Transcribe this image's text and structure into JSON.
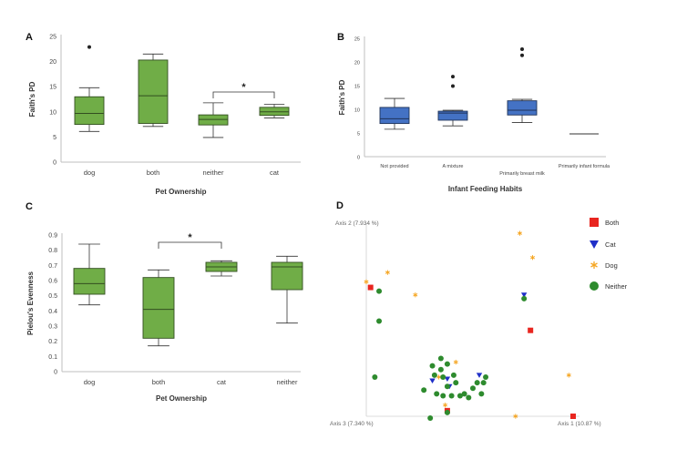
{
  "chart_data": [
    {
      "panel": "A",
      "type": "box",
      "title": "",
      "xlabel": "Pet Ownership",
      "ylabel": "Faith's PD",
      "ylim": [
        0,
        25
      ],
      "yticks": [
        "0",
        "5",
        "10",
        "15",
        "20",
        "25"
      ],
      "categories": [
        "dog",
        "both",
        "neither",
        "cat"
      ],
      "color": "#70ad47",
      "boxes": [
        {
          "min": 6.1,
          "q1": 7.5,
          "median": 9.7,
          "q3": 13.0,
          "max": 14.8,
          "outliers": [
            22.9
          ]
        },
        {
          "min": 7.1,
          "q1": 7.7,
          "median": 13.2,
          "q3": 20.3,
          "max": 21.5,
          "outliers": []
        },
        {
          "min": 4.9,
          "q1": 7.4,
          "median": 8.5,
          "q3": 9.4,
          "max": 11.8,
          "outliers": []
        },
        {
          "min": 8.8,
          "q1": 9.3,
          "median": 10.0,
          "q3": 10.9,
          "max": 11.5,
          "outliers": []
        }
      ],
      "significance": {
        "between": [
          "neither",
          "cat"
        ],
        "label": "*"
      }
    },
    {
      "panel": "B",
      "type": "box",
      "title": "",
      "xlabel": "Infant Feeding Habits",
      "ylabel": "Faith's PD",
      "ylim": [
        0,
        25
      ],
      "yticks": [
        "0",
        "5",
        "10",
        "15",
        "20",
        "25"
      ],
      "categories": [
        "Not provided",
        "A mixture",
        "Primarily breast milk",
        "Primarily infant formula"
      ],
      "color": "#4472c4",
      "boxes": [
        {
          "min": 5.8,
          "q1": 7.0,
          "median": 8.0,
          "q3": 10.4,
          "max": 12.3,
          "outliers": []
        },
        {
          "min": 6.5,
          "q1": 7.7,
          "median": 9.2,
          "q3": 9.6,
          "max": 9.8,
          "outliers": [
            14.9,
            16.9
          ]
        },
        {
          "min": 7.2,
          "q1": 8.8,
          "median": 9.8,
          "q3": 11.8,
          "max": 12.1,
          "outliers": [
            21.4,
            22.7
          ]
        },
        {
          "min": 4.8,
          "q1": 4.8,
          "median": 4.8,
          "q3": 4.8,
          "max": 4.8,
          "outliers": []
        }
      ]
    },
    {
      "panel": "C",
      "type": "box",
      "title": "",
      "xlabel": "Pet Ownership",
      "ylabel": "Pielou's Evenness",
      "ylim": [
        0,
        0.9
      ],
      "yticks": [
        "0",
        "0.1",
        "0.2",
        "0.3",
        "0.4",
        "0.5",
        "0.6",
        "0.7",
        "0.8",
        "0.9"
      ],
      "categories": [
        "dog",
        "both",
        "cat",
        "neither"
      ],
      "color": "#70ad47",
      "boxes": [
        {
          "min": 0.44,
          "q1": 0.51,
          "median": 0.58,
          "q3": 0.68,
          "max": 0.84,
          "outliers": []
        },
        {
          "min": 0.17,
          "q1": 0.22,
          "median": 0.41,
          "q3": 0.62,
          "max": 0.67,
          "outliers": []
        },
        {
          "min": 0.63,
          "q1": 0.66,
          "median": 0.69,
          "q3": 0.72,
          "max": 0.73,
          "outliers": []
        },
        {
          "min": 0.32,
          "q1": 0.54,
          "median": 0.69,
          "q3": 0.72,
          "max": 0.76,
          "outliers": []
        }
      ],
      "significance": {
        "between": [
          "both",
          "cat"
        ],
        "label": "*"
      }
    },
    {
      "panel": "D",
      "type": "scatter",
      "title": "",
      "axes": {
        "axis1": "Axis 1 (10.87 %)",
        "axis2": "Axis 2 (7.934 %)",
        "axis3": "Axis 3 (7.340 %)"
      },
      "legend_position": "top-right",
      "series": [
        {
          "name": "Both",
          "marker": "square",
          "color": "#e8251f",
          "points": [
            [
              0.02,
              0.69
            ],
            [
              0.38,
              0.03
            ],
            [
              0.77,
              0.46
            ],
            [
              0.97,
              0.0
            ]
          ]
        },
        {
          "name": "Cat",
          "marker": "triangle-down",
          "color": "#1f2fc8",
          "points": [
            [
              0.31,
              0.19
            ],
            [
              0.38,
              0.2
            ],
            [
              0.39,
              0.16
            ],
            [
              0.53,
              0.22
            ],
            [
              0.74,
              0.65
            ]
          ]
        },
        {
          "name": "Dog",
          "marker": "asterisk",
          "color": "#f5a623",
          "points": [
            [
              0.0,
              0.72
            ],
            [
              0.1,
              0.77
            ],
            [
              0.23,
              0.65
            ],
            [
              0.34,
              0.21
            ],
            [
              0.37,
              0.06
            ],
            [
              0.42,
              0.29
            ],
            [
              0.7,
              0.0
            ],
            [
              0.72,
              0.98
            ],
            [
              0.78,
              0.85
            ],
            [
              0.95,
              0.22
            ]
          ]
        },
        {
          "name": "Neither",
          "marker": "circle",
          "color": "#2e8b2e",
          "points": [
            [
              0.06,
              0.67
            ],
            [
              0.06,
              0.51
            ],
            [
              0.04,
              0.21
            ],
            [
              0.27,
              0.14
            ],
            [
              0.31,
              0.27
            ],
            [
              0.32,
              0.22
            ],
            [
              0.33,
              0.12
            ],
            [
              0.35,
              0.25
            ],
            [
              0.35,
              0.31
            ],
            [
              0.36,
              0.21
            ],
            [
              0.36,
              0.11
            ],
            [
              0.38,
              0.16
            ],
            [
              0.38,
              0.28
            ],
            [
              0.4,
              0.11
            ],
            [
              0.41,
              0.22
            ],
            [
              0.42,
              0.18
            ],
            [
              0.44,
              0.11
            ],
            [
              0.46,
              0.12
            ],
            [
              0.48,
              0.1
            ],
            [
              0.5,
              0.15
            ],
            [
              0.52,
              0.18
            ],
            [
              0.54,
              0.12
            ],
            [
              0.55,
              0.18
            ],
            [
              0.56,
              0.21
            ],
            [
              0.74,
              0.63
            ],
            [
              0.3,
              -0.01
            ],
            [
              0.38,
              0.02
            ]
          ]
        }
      ]
    }
  ]
}
